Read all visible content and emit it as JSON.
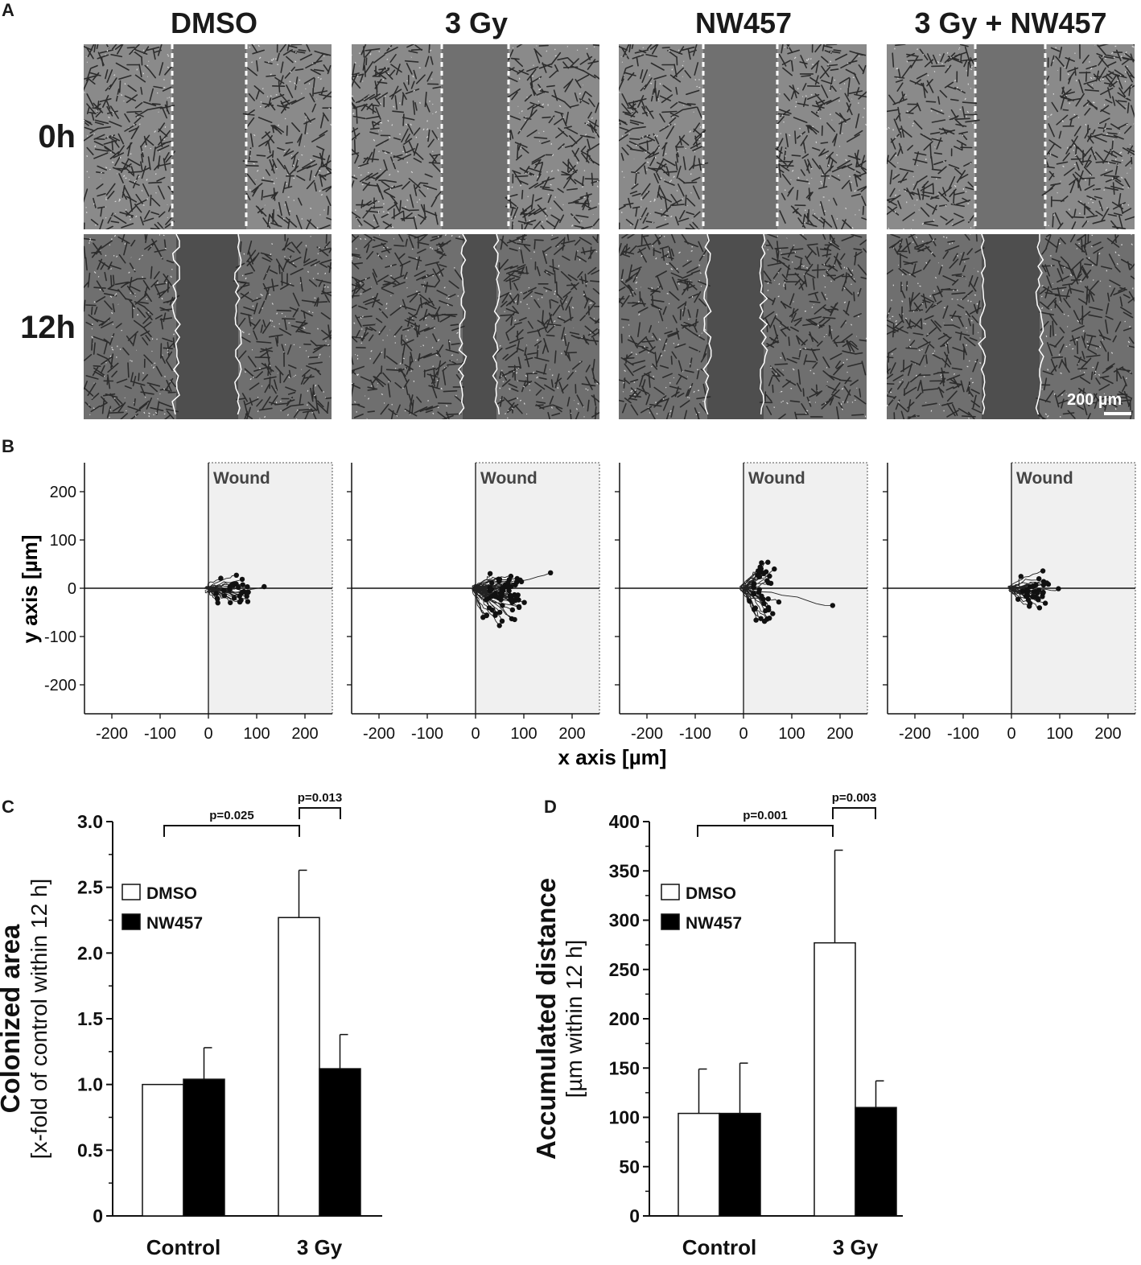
{
  "panel_letters": {
    "a": "A",
    "b": "B",
    "c": "C",
    "d": "D"
  },
  "panel_a": {
    "columns": [
      "DMSO",
      "3 Gy",
      "NW457",
      "3 Gy + NW457"
    ],
    "rows": [
      "0h",
      "12h"
    ],
    "scale_bar": "200 µm"
  },
  "panel_b": {
    "wound_label": "Wound",
    "y_axis_label": "y axis [µm]",
    "x_axis_label": "x axis [µm]",
    "x_ticks": [
      "-200",
      "-100",
      "0",
      "100",
      "200"
    ],
    "y_ticks": [
      "200",
      "100",
      "0",
      "-100",
      "-200"
    ]
  },
  "chart_data": [
    {
      "type": "bar",
      "panel": "C",
      "categories": [
        "Control",
        "3 Gy"
      ],
      "series": [
        {
          "name": "DMSO",
          "values": [
            1.0,
            2.27
          ],
          "errors": [
            0.0,
            0.36
          ]
        },
        {
          "name": "NW457",
          "values": [
            1.04,
            1.12
          ],
          "errors": [
            0.24,
            0.26
          ]
        }
      ],
      "ylabel_bold": "Colonized area",
      "ylabel": "[x-fold of control within 12 h]",
      "ylim": [
        0,
        3.0
      ],
      "yticks": [
        "0",
        "0.5",
        "1.0",
        "1.5",
        "2.0",
        "2.5",
        "3.0"
      ],
      "annotations": [
        "p=0.025",
        "p=0.013"
      ],
      "legend_position": "upper-left",
      "colors": {
        "DMSO": "#ffffff",
        "NW457": "#000000"
      }
    },
    {
      "type": "bar",
      "panel": "D",
      "categories": [
        "Control",
        "3 Gy"
      ],
      "series": [
        {
          "name": "DMSO",
          "values": [
            104,
            277
          ],
          "errors": [
            45,
            94
          ]
        },
        {
          "name": "NW457",
          "values": [
            104,
            110
          ],
          "errors": [
            51,
            27
          ]
        }
      ],
      "ylabel_bold": "Accumulated distance",
      "ylabel": "[µm within 12 h]",
      "ylim": [
        0,
        400
      ],
      "yticks": [
        "0",
        "50",
        "100",
        "150",
        "200",
        "250",
        "300",
        "350",
        "400"
      ],
      "annotations": [
        "p=0.001",
        "p=0.003"
      ],
      "legend_position": "upper-left",
      "colors": {
        "DMSO": "#ffffff",
        "NW457": "#000000"
      }
    }
  ]
}
